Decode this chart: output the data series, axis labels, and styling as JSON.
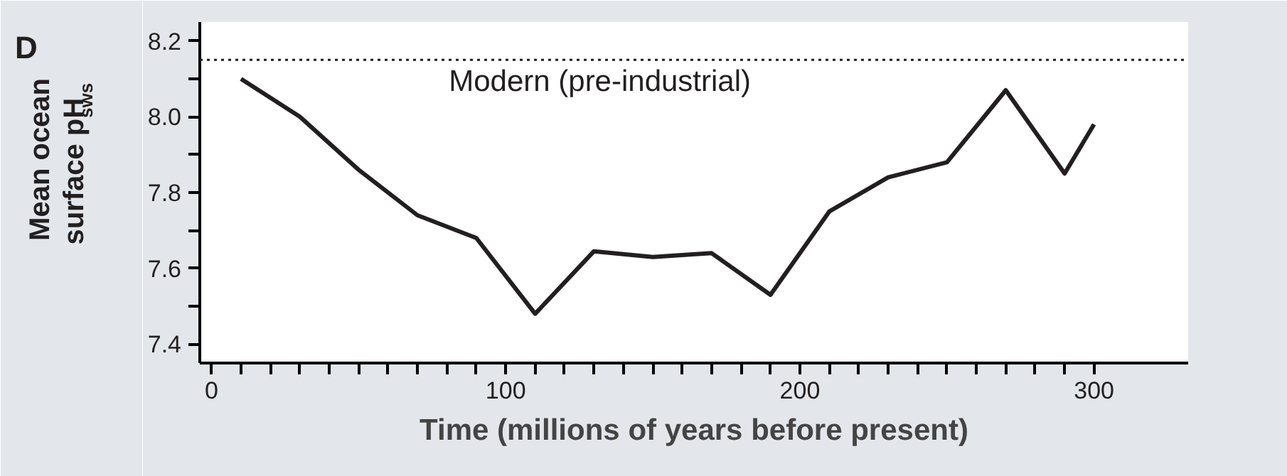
{
  "chart_data": {
    "type": "line",
    "title": "D",
    "xlabel": "Time (millions of years before present)",
    "ylabel": "Mean ocean\nsurface pH$_{sws}$",
    "x": [
      10,
      30,
      50,
      70,
      90,
      110,
      130,
      150,
      170,
      190,
      210,
      230,
      250,
      270,
      290,
      300
    ],
    "series": [
      {
        "color": "#231f20",
        "values": [
          8.1,
          8.0,
          7.86,
          7.74,
          7.68,
          7.48,
          7.645,
          7.63,
          7.64,
          7.53,
          7.75,
          7.84,
          7.88,
          8.07,
          7.85,
          7.98
        ]
      }
    ],
    "xlim": [
      -4,
      332
    ],
    "ylim": [
      7.35,
      8.25
    ],
    "xticks": [
      0,
      {
        "value": 10,
        "label": null
      },
      {
        "value": 20,
        "label": null
      },
      {
        "value": 30,
        "label": null
      },
      {
        "value": 40,
        "label": null
      },
      {
        "value": 50,
        "label": null
      },
      {
        "value": 60,
        "label": null
      },
      {
        "value": 70,
        "label": null
      },
      {
        "value": 80,
        "label": null
      },
      {
        "value": 90,
        "label": null
      },
      100,
      {
        "value": 110,
        "label": null
      },
      {
        "value": 120,
        "label": null
      },
      {
        "value": 130,
        "label": null
      },
      {
        "value": 140,
        "label": null
      },
      {
        "value": 150,
        "label": null
      },
      {
        "value": 160,
        "label": null
      },
      {
        "value": 170,
        "label": null
      },
      {
        "value": 180,
        "label": null
      },
      {
        "value": 190,
        "label": null
      },
      200,
      {
        "value": 210,
        "label": null
      },
      {
        "value": 220,
        "label": null
      },
      {
        "value": 230,
        "label": null
      },
      {
        "value": 240,
        "label": null
      },
      {
        "value": 250,
        "label": null
      },
      {
        "value": 260,
        "label": null
      },
      {
        "value": 270,
        "label": null
      },
      {
        "value": 280,
        "label": null
      },
      {
        "value": 290,
        "label": null
      },
      300
    ],
    "yticks": [
      7.4,
      {
        "value": 7.5,
        "label": null
      },
      7.6,
      {
        "value": 7.7,
        "label": null
      },
      7.8,
      {
        "value": 7.9,
        "label": null
      },
      {
        "value": 8.0,
        "label": "8.0"
      },
      {
        "value": 8.1,
        "label": null
      },
      8.2
    ],
    "ref_lines": [
      {
        "axis": "y",
        "value": 8.15,
        "label": "Modern (pre-industrial)",
        "color": "#231f20",
        "line_style": "dotted"
      }
    ],
    "grid": false,
    "marker": "none",
    "line_style": "solid"
  }
}
